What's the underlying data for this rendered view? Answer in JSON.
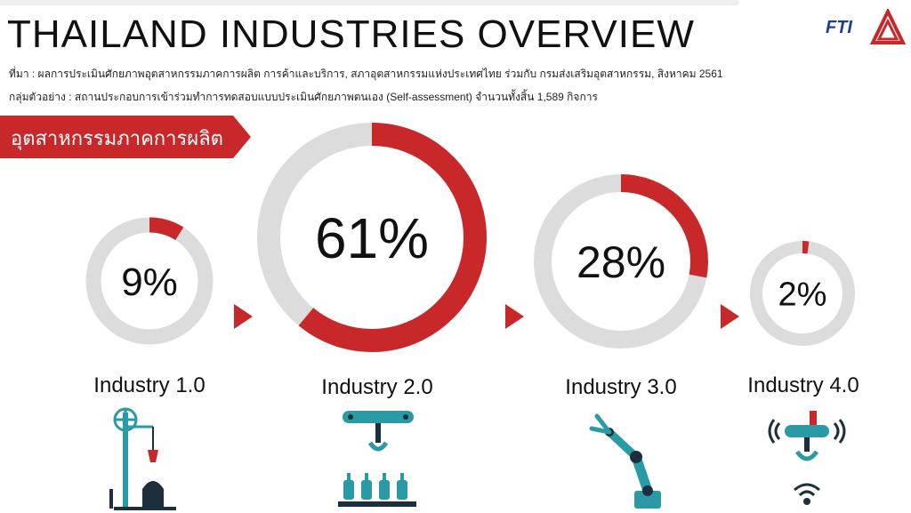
{
  "header": {
    "title": "THAILAND INDUSTRIES OVERVIEW",
    "source_line": "ที่มา : ผลการประเมินศักยภาพอุตสาหกรรมภาคการผลิต การค้าและบริการ, สภาอุตสาหกรรมแห่งประเทศไทย ร่วมกับ กรมส่งเสริมอุตสาหกรรม, สิงหาคม 2561",
    "sample_line": "กลุ่มตัวอย่าง : สถานประกอบการเข้าร่วมทำการทดสอบแบบประเมินศักยภาพตนเอง (Self-assessment) จำนวนทั้งสิ้น 1,589 กิจการ",
    "logo_text": "FTI",
    "section_banner": "อุตสาหกรรมภาคการผลิต"
  },
  "colors": {
    "accent": "#c8282a",
    "track": "#dcdcdc",
    "icon": "#2a9aa5",
    "icon_dark": "#1d2f3c",
    "logo_blue": "#1d3f9a"
  },
  "icons": [
    "windmill-press-icon",
    "conveyor-gripper-icon",
    "robot-arm-icon",
    "wireless-gripper-icon"
  ],
  "chart_data": {
    "type": "pie",
    "categories": [
      "Industry 1.0",
      "Industry 2.0",
      "Industry 3.0",
      "Industry 4.0"
    ],
    "values": [
      9,
      61,
      28,
      2
    ],
    "value_labels": [
      "9%",
      "61%",
      "28%",
      "2%"
    ]
  }
}
